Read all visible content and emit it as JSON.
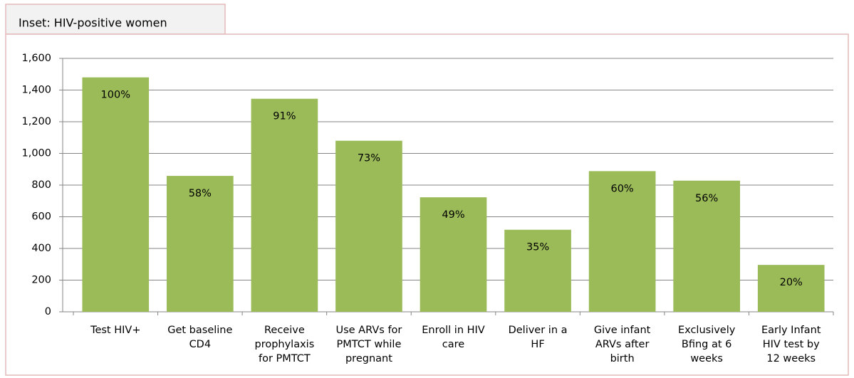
{
  "chart_data": {
    "type": "bar",
    "title": "Inset: HIV-positive women",
    "categories": [
      [
        "Test HIV+"
      ],
      [
        "Get baseline",
        "CD4"
      ],
      [
        "Receive",
        "prophylaxis",
        "for PMTCT"
      ],
      [
        "Use ARVs for",
        "PMTCT while",
        "pregnant"
      ],
      [
        "Enroll in HIV",
        "care"
      ],
      [
        "Deliver in a",
        "HF"
      ],
      [
        "Give infant",
        "ARVs after",
        "birth"
      ],
      [
        "Exclusively",
        "Bfing at 6",
        "weeks"
      ],
      [
        "Early Infant",
        "HIV test by",
        "12 weeks"
      ]
    ],
    "values": [
      1480,
      858,
      1345,
      1080,
      723,
      518,
      888,
      828,
      296
    ],
    "value_labels": [
      "100%",
      "58%",
      "91%",
      "73%",
      "49%",
      "35%",
      "60%",
      "56%",
      "20%"
    ],
    "color": "#9bbb59",
    "ylim": [
      0,
      1600
    ],
    "yticks": [
      0,
      200,
      400,
      600,
      800,
      {
        "value": 1000,
        "label": "1,000"
      },
      {
        "value": 1200,
        "label": "1,200"
      },
      {
        "value": 1400,
        "label": "1,400"
      },
      {
        "value": 1600,
        "label": "1,600"
      }
    ],
    "grid": true
  }
}
